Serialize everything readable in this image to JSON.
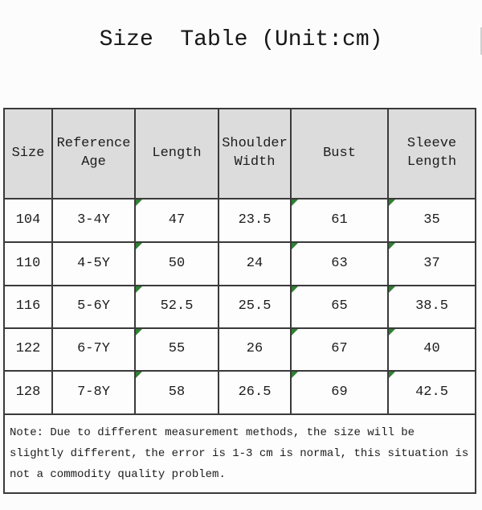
{
  "page": {
    "title": "Size  Table (Unit:cm)",
    "background": "#fcfcfc"
  },
  "table": {
    "headers": [
      "Size",
      "Reference Age",
      "Length",
      "Shoulder Width",
      "Bust",
      "Sleeve Length"
    ],
    "rows": [
      {
        "cells": [
          "104",
          "3-4Y",
          "47",
          "23.5",
          "61",
          "35"
        ]
      },
      {
        "cells": [
          "110",
          "4-5Y",
          "50",
          "24",
          "63",
          "37"
        ]
      },
      {
        "cells": [
          "116",
          "5-6Y",
          "52.5",
          "25.5",
          "65",
          "38.5"
        ]
      },
      {
        "cells": [
          "122",
          "6-7Y",
          "55",
          "26",
          "67",
          "40"
        ]
      },
      {
        "cells": [
          "128",
          "7-8Y",
          "58",
          "26.5",
          "69",
          "42.5"
        ]
      }
    ],
    "marker_icon": "excel-error-triangle",
    "marker_columns": [
      2,
      4,
      5
    ],
    "colors": {
      "header_bg": "#dcdcdc",
      "border": "#3a3a3a",
      "marker_green": "#2f8032",
      "text": "#1d1d1d"
    }
  },
  "note": {
    "text": "Note: Due to different measurement methods, the size will be\nslightly different, the error is 1-3 cm is normal, this situation is\nnot a commodity quality problem."
  }
}
